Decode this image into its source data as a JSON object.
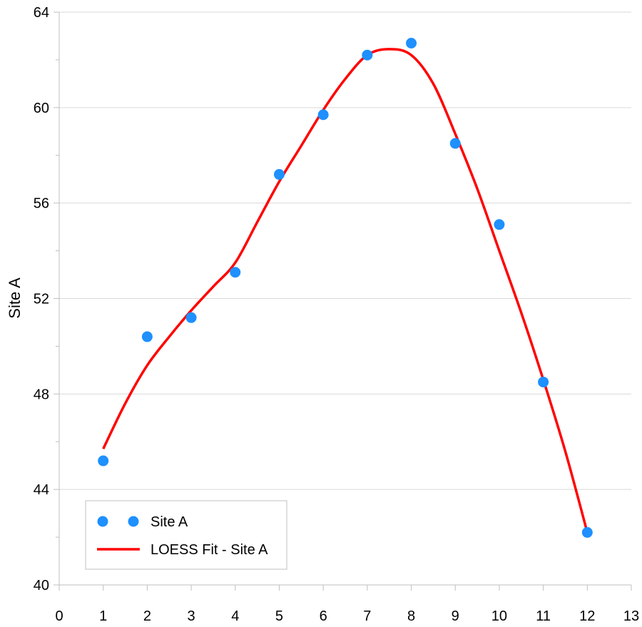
{
  "chart_data": {
    "type": "scatter",
    "title": "",
    "xlabel": "",
    "ylabel": "Site A",
    "xlim": [
      0,
      13
    ],
    "ylim": [
      40,
      64
    ],
    "x_ticks": [
      0,
      1,
      2,
      3,
      4,
      5,
      6,
      7,
      8,
      9,
      10,
      11,
      12,
      13
    ],
    "y_ticks": [
      40,
      44,
      48,
      52,
      56,
      60,
      64
    ],
    "grid": "horizontal",
    "legend_position": "bottom-left",
    "series": [
      {
        "name": "Site A",
        "kind": "scatter",
        "color": "#1E90FF",
        "x": [
          1,
          2,
          3,
          4,
          5,
          6,
          7,
          8,
          9,
          10,
          11,
          12
        ],
        "y": [
          45.2,
          50.4,
          51.2,
          53.1,
          57.2,
          59.7,
          62.2,
          62.7,
          58.5,
          55.1,
          48.5,
          42.2
        ]
      },
      {
        "name": "LOESS Fit - Site A",
        "kind": "line",
        "color": "#FF0000",
        "x": [
          1,
          1.5,
          2,
          2.5,
          3,
          3.5,
          4,
          4.5,
          5,
          5.5,
          6,
          6.5,
          7,
          7.5,
          8,
          8.5,
          9,
          9.5,
          10,
          10.5,
          11,
          11.5,
          12
        ],
        "y": [
          45.7,
          47.6,
          49.2,
          50.4,
          51.5,
          52.5,
          53.5,
          55.2,
          56.9,
          58.4,
          59.9,
          61.2,
          62.2,
          62.45,
          62.2,
          61.0,
          58.9,
          56.6,
          54.0,
          51.4,
          48.6,
          45.6,
          42.2
        ]
      }
    ]
  }
}
